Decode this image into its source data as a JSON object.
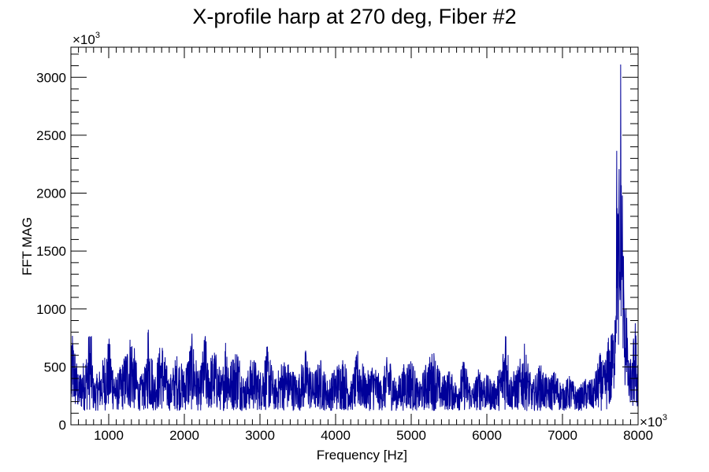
{
  "chart_data": {
    "type": "line",
    "title": "X-profile harp at 270 deg, Fiber #2",
    "xlabel": "Frequency [Hz]",
    "ylabel": "FFT MAG",
    "x_multiplier": "×10",
    "x_multiplier_exp": "3",
    "y_multiplier": "×10",
    "y_multiplier_exp": "3",
    "xlim": [
      500,
      8000
    ],
    "ylim": [
      0,
      3260
    ],
    "x_ticks": [
      1000,
      2000,
      3000,
      4000,
      5000,
      6000,
      7000,
      8000
    ],
    "x_tick_labels": [
      "1000",
      "2000",
      "3000",
      "4000",
      "5000",
      "6000",
      "7000",
      "8000"
    ],
    "y_ticks": [
      0,
      500,
      1000,
      1500,
      2000,
      2500,
      3000
    ],
    "y_tick_labels": [
      "0",
      "500",
      "1000",
      "1500",
      "2000",
      "2500",
      "3000"
    ],
    "grid": false,
    "series": [
      {
        "color": "#000099",
        "x": [
          500,
          520,
          600,
          700,
          760,
          800,
          900,
          1000,
          1100,
          1200,
          1300,
          1400,
          1500,
          1520,
          1600,
          1700,
          1800,
          1900,
          2000,
          2100,
          2200,
          2280,
          2300,
          2400,
          2500,
          2550,
          2600,
          2700,
          2800,
          2900,
          3000,
          3100,
          3200,
          3300,
          3400,
          3500,
          3600,
          3700,
          3800,
          3900,
          4000,
          4100,
          4200,
          4300,
          4400,
          4500,
          4600,
          4700,
          4800,
          4900,
          5000,
          5100,
          5200,
          5300,
          5400,
          5500,
          5600,
          5700,
          5800,
          5900,
          6000,
          6100,
          6200,
          6250,
          6300,
          6400,
          6500,
          6600,
          6700,
          6800,
          6900,
          7000,
          7100,
          7200,
          7300,
          7400,
          7450,
          7500,
          7550,
          7600,
          7650,
          7680,
          7700,
          7720,
          7740,
          7750,
          7760,
          7770,
          7780,
          7790,
          7800,
          7810,
          7820,
          7830,
          7840,
          7860,
          7880,
          7900,
          7920,
          7940,
          7960,
          7980,
          8000
        ],
        "y": [
          420,
          700,
          300,
          480,
          760,
          250,
          380,
          620,
          280,
          450,
          690,
          260,
          400,
          800,
          310,
          620,
          270,
          480,
          350,
          640,
          290,
          700,
          420,
          520,
          300,
          700,
          400,
          560,
          250,
          480,
          330,
          550,
          260,
          450,
          390,
          280,
          520,
          310,
          440,
          250,
          380,
          470,
          230,
          540,
          300,
          420,
          260,
          500,
          240,
          390,
          460,
          220,
          410,
          520,
          280,
          350,
          240,
          440,
          200,
          370,
          300,
          250,
          420,
          830,
          310,
          350,
          560,
          230,
          400,
          280,
          340,
          220,
          300,
          180,
          270,
          260,
          360,
          490,
          380,
          600,
          700,
          800,
          1200,
          2400,
          1600,
          2200,
          1300,
          3120,
          1900,
          2150,
          1600,
          1400,
          1000,
          800,
          1280,
          650,
          450,
          530,
          400,
          620,
          860,
          480,
          560
        ]
      }
    ]
  }
}
